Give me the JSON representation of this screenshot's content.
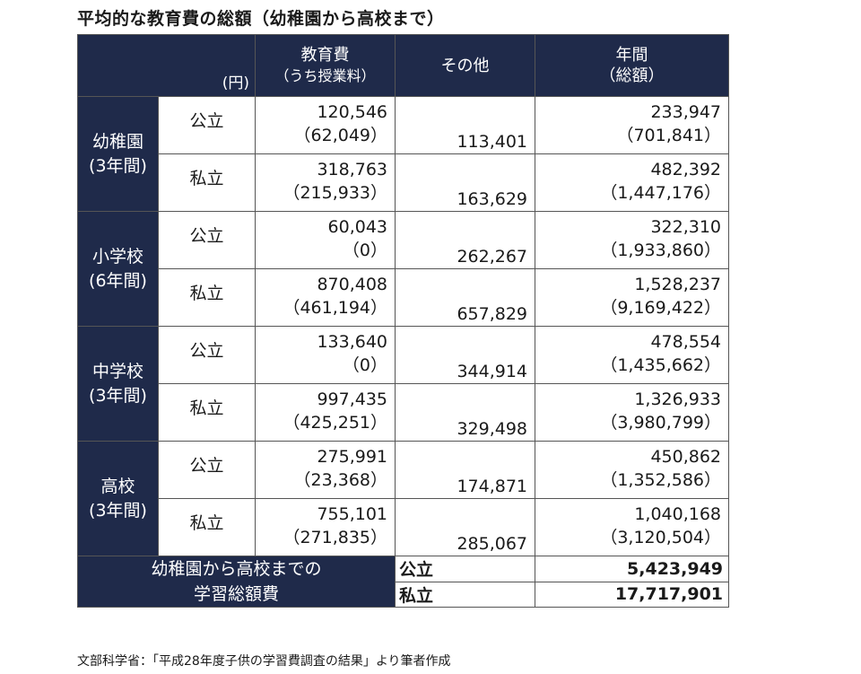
{
  "title": "平均的な教育費の総額（幼稚園から高校まで）",
  "header": {
    "unit": "(円)",
    "col1_line1": "教育費",
    "col1_line2": "（うち授業料）",
    "col2": "その他",
    "col3_line1": "年間",
    "col3_line2": "（総額）"
  },
  "groups": [
    {
      "name": "幼稚園",
      "period": "(3年間)",
      "rows": [
        {
          "type": "公立",
          "edu": "120,546",
          "tuition": "（62,049）",
          "other": "113,401",
          "annual": "233,947",
          "total": "（701,841）"
        },
        {
          "type": "私立",
          "edu": "318,763",
          "tuition": "（215,933）",
          "other": "163,629",
          "annual": "482,392",
          "total": "（1,447,176）"
        }
      ]
    },
    {
      "name": "小学校",
      "period": "(6年間)",
      "rows": [
        {
          "type": "公立",
          "edu": "60,043",
          "tuition": "（0）",
          "other": "262,267",
          "annual": "322,310",
          "total": "（1,933,860）"
        },
        {
          "type": "私立",
          "edu": "870,408",
          "tuition": "（461,194）",
          "other": "657,829",
          "annual": "1,528,237",
          "total": "（9,169,422）"
        }
      ]
    },
    {
      "name": "中学校",
      "period": "(3年間)",
      "rows": [
        {
          "type": "公立",
          "edu": "133,640",
          "tuition": "（0）",
          "other": "344,914",
          "annual": "478,554",
          "total": "（1,435,662）"
        },
        {
          "type": "私立",
          "edu": "997,435",
          "tuition": "（425,251）",
          "other": "329,498",
          "annual": "1,326,933",
          "total": "（3,980,799）"
        }
      ]
    },
    {
      "name": "高校",
      "period": "(3年間)",
      "rows": [
        {
          "type": "公立",
          "edu": "275,991",
          "tuition": "（23,368）",
          "other": "174,871",
          "annual": "450,862",
          "total": "（1,352,586）"
        },
        {
          "type": "私立",
          "edu": "755,101",
          "tuition": "（271,835）",
          "other": "285,067",
          "annual": "1,040,168",
          "total": "（3,120,504）"
        }
      ]
    }
  ],
  "summary": {
    "label_line1": "幼稚園から高校までの",
    "label_line2": "学習総額費",
    "public_label": "公立",
    "public_value": "5,423,949",
    "private_label": "私立",
    "private_value": "17,717,901"
  },
  "source": "文部科学省：「平成28年度子供の学習費調査の結果」より筆者作成",
  "colors": {
    "header_bg": "#1f2a4a",
    "header_text": "#ffffff",
    "border": "#555555"
  }
}
